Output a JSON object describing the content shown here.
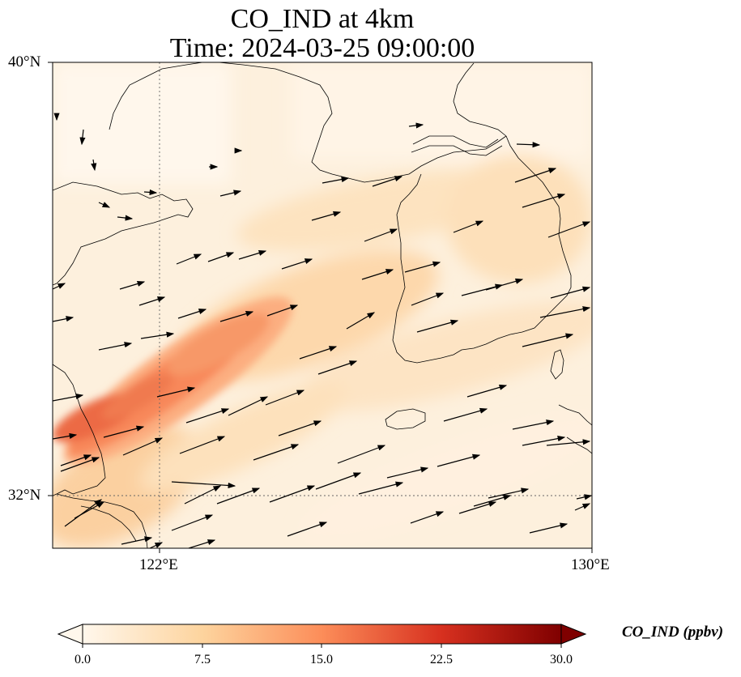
{
  "title": {
    "line1": "CO_IND at 4km",
    "line2": "Time: 2024-03-25 09:00:00"
  },
  "map": {
    "lat_ticks": [
      "40°N",
      "32°N"
    ],
    "lon_ticks": [
      "122°E",
      "130°E"
    ],
    "extent": {
      "lon": [
        120.4,
        130
      ],
      "lat": [
        31,
        40
      ]
    },
    "gridlines": "dotted at 122°E and 32°N"
  },
  "colorbar": {
    "label": "CO_IND (ppbv)",
    "ticks": [
      "0.0",
      "7.5",
      "15.0",
      "22.5",
      "30.0"
    ],
    "range": [
      0,
      30
    ],
    "colormap": "OrRd",
    "extend": "both",
    "colors": [
      "#fff7ec",
      "#fdd49e",
      "#fc8d59",
      "#d7301f",
      "#7f0000"
    ]
  },
  "plume": {
    "max_ppbv": 17,
    "orientation": "southwest to northeast from Yangtze delta toward Yellow Sea"
  },
  "wind": {
    "direction": "west-southwesterly (toward ENE)"
  }
}
